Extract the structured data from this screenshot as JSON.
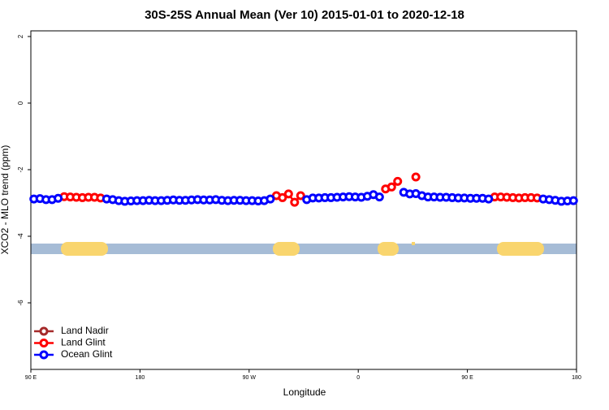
{
  "chart_data": {
    "type": "line",
    "title": "30S-25S Annual Mean (Ver 10)   2015-01-01 to 2020-12-18",
    "x_label": "Longitude",
    "y_label": "XCO2 - MLO trend (ppm)",
    "xlim": [
      90,
      540
    ],
    "xticks": [
      {
        "value": 90,
        "label": "90 E"
      },
      {
        "value": 180,
        "label": "180"
      },
      {
        "value": 270,
        "label": "90 W"
      },
      {
        "value": 360,
        "label": "0"
      },
      {
        "value": 450,
        "label": "90 E"
      },
      {
        "value": 540,
        "label": "180"
      }
    ],
    "ylim": [
      -8,
      2.17
    ],
    "yticks": [
      2,
      0,
      -2,
      -4,
      -6
    ],
    "x": [
      92.5,
      97.5,
      102.5,
      107.5,
      112.5,
      117.5,
      122.5,
      127.5,
      132.5,
      137.5,
      142.5,
      147.5,
      152.5,
      157.5,
      162.5,
      167.5,
      172.5,
      177.5,
      182.5,
      187.5,
      192.5,
      197.5,
      202.5,
      207.5,
      212.5,
      217.5,
      222.5,
      227.5,
      232.5,
      237.5,
      242.5,
      247.5,
      252.5,
      257.5,
      262.5,
      267.5,
      272.5,
      277.5,
      282.5,
      287.5,
      292.5,
      297.5,
      302.5,
      307.5,
      312.5,
      317.5,
      322.5,
      327.5,
      332.5,
      337.5,
      342.5,
      347.5,
      352.5,
      357.5,
      362.5,
      367.5,
      372.5,
      377.5,
      382.5,
      387.5,
      392.5,
      397.5,
      402.5,
      407.5,
      412.5,
      417.5,
      422.5,
      427.5,
      432.5,
      437.5,
      442.5,
      447.5,
      452.5,
      457.5,
      462.5,
      467.5,
      472.5,
      477.5,
      482.5,
      487.5,
      492.5,
      497.5,
      502.5,
      507.5,
      512.5,
      517.5,
      522.5,
      527.5,
      532.5,
      537.5
    ],
    "series": [
      {
        "name": "Land Nadir",
        "color": "#a52a2a"
      },
      {
        "name": "Land Glint",
        "color": "#ff0000",
        "values": [
          null,
          null,
          null,
          null,
          null,
          -2.81,
          -2.82,
          -2.83,
          -2.84,
          -2.83,
          -2.83,
          -2.85,
          null,
          null,
          null,
          null,
          null,
          null,
          null,
          null,
          null,
          null,
          null,
          null,
          null,
          null,
          null,
          null,
          null,
          null,
          null,
          null,
          null,
          null,
          null,
          null,
          null,
          null,
          null,
          null,
          -2.78,
          -2.84,
          -2.73,
          -2.98,
          -2.78,
          null,
          null,
          null,
          null,
          null,
          null,
          null,
          null,
          null,
          null,
          null,
          null,
          null,
          -2.58,
          -2.52,
          -2.35,
          null,
          null,
          -2.22,
          null,
          null,
          null,
          null,
          null,
          null,
          null,
          null,
          null,
          null,
          null,
          null,
          -2.82,
          -2.82,
          -2.83,
          -2.84,
          -2.85,
          -2.84,
          -2.84,
          -2.85,
          null,
          null,
          null,
          null,
          null,
          null
        ]
      },
      {
        "name": "Ocean Glint",
        "color": "#0000ff",
        "values": [
          -2.88,
          -2.87,
          -2.9,
          -2.9,
          -2.86,
          null,
          null,
          null,
          null,
          null,
          null,
          null,
          -2.88,
          -2.9,
          -2.93,
          -2.95,
          -2.94,
          -2.93,
          -2.93,
          -2.92,
          -2.93,
          -2.93,
          -2.92,
          -2.91,
          -2.92,
          -2.92,
          -2.91,
          -2.9,
          -2.91,
          -2.91,
          -2.9,
          -2.92,
          -2.93,
          -2.92,
          -2.92,
          -2.93,
          -2.93,
          -2.94,
          -2.93,
          -2.88,
          null,
          null,
          null,
          null,
          null,
          -2.9,
          -2.85,
          -2.85,
          -2.84,
          -2.84,
          -2.83,
          -2.82,
          -2.81,
          -2.82,
          -2.83,
          -2.8,
          -2.75,
          -2.82,
          null,
          null,
          null,
          -2.68,
          -2.73,
          -2.72,
          -2.78,
          -2.82,
          -2.82,
          -2.83,
          -2.83,
          -2.84,
          -2.85,
          -2.85,
          -2.86,
          -2.86,
          -2.86,
          -2.88,
          null,
          null,
          null,
          null,
          null,
          null,
          null,
          null,
          -2.88,
          -2.9,
          -2.92,
          -2.95,
          -2.94,
          -2.93
        ]
      }
    ]
  }
}
